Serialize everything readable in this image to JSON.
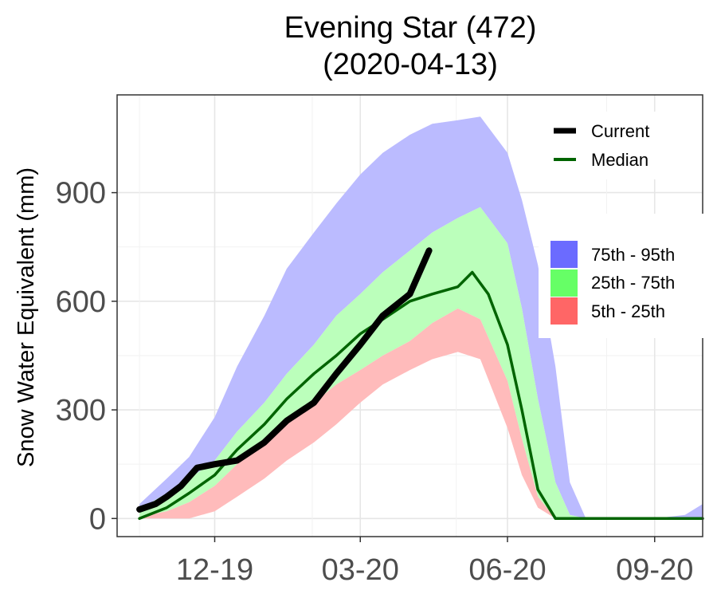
{
  "chart_data": {
    "type": "area",
    "title": "Evening Star (472)",
    "subtitle": "(2020-04-13)",
    "xlabel": "",
    "ylabel": "Snow Water Equivalent (mm)",
    "x_ticks": [
      "12-19",
      "03-20",
      "06-20",
      "09-20"
    ],
    "y_ticks": [
      0,
      300,
      600,
      900
    ],
    "ylim": [
      -50,
      1170
    ],
    "xlim": [
      "2019-10-01",
      "2020-10-01"
    ],
    "grid": true,
    "legend_lines": [
      {
        "label": "Current",
        "color": "#000000"
      },
      {
        "label": "Median",
        "color": "#006400"
      }
    ],
    "legend_bands": [
      {
        "label": "75th - 95th",
        "color": "#6b6bff"
      },
      {
        "label": "25th - 75th",
        "color": "#66ff66"
      },
      {
        "label": "5th - 25th",
        "color": "#ff6666"
      }
    ],
    "band_colors": {
      "p75_95": "#bbbbff",
      "p25_75": "#bbffbb",
      "p5_25": "#ffbbbb"
    },
    "percentile_bands": {
      "dates": [
        "2019-10-15",
        "2019-11-01",
        "2019-11-15",
        "2019-12-01",
        "2019-12-15",
        "2020-01-01",
        "2020-01-15",
        "2020-02-01",
        "2020-02-15",
        "2020-03-01",
        "2020-03-15",
        "2020-04-01",
        "2020-04-15",
        "2020-05-01",
        "2020-05-15",
        "2020-06-01",
        "2020-06-10",
        "2020-06-20",
        "2020-07-01",
        "2020-07-10",
        "2020-07-20",
        "2020-08-01",
        "2020-09-01",
        "2020-09-20",
        "2020-10-01"
      ],
      "p5": [
        0,
        0,
        0,
        20,
        60,
        110,
        160,
        210,
        260,
        320,
        370,
        410,
        440,
        460,
        440,
        250,
        120,
        30,
        0,
        0,
        0,
        0,
        0,
        0,
        0
      ],
      "p25": [
        5,
        20,
        45,
        90,
        150,
        210,
        270,
        320,
        370,
        410,
        450,
        490,
        540,
        580,
        550,
        380,
        220,
        60,
        0,
        0,
        0,
        0,
        0,
        0,
        0
      ],
      "p75": [
        25,
        70,
        110,
        160,
        240,
        320,
        400,
        480,
        560,
        620,
        680,
        740,
        790,
        830,
        860,
        760,
        580,
        330,
        100,
        10,
        0,
        0,
        0,
        0,
        0
      ],
      "p95": [
        40,
        110,
        170,
        280,
        420,
        560,
        690,
        790,
        870,
        950,
        1010,
        1060,
        1090,
        1100,
        1110,
        1010,
        880,
        700,
        420,
        100,
        0,
        0,
        0,
        10,
        40
      ]
    },
    "series": [
      {
        "name": "Median",
        "color": "#006400",
        "dates": [
          "2019-10-15",
          "2019-11-01",
          "2019-11-15",
          "2019-12-01",
          "2019-12-15",
          "2020-01-01",
          "2020-01-15",
          "2020-02-01",
          "2020-02-15",
          "2020-03-01",
          "2020-03-15",
          "2020-04-01",
          "2020-04-15",
          "2020-05-01",
          "2020-05-10",
          "2020-05-20",
          "2020-06-01",
          "2020-06-10",
          "2020-06-20",
          "2020-07-01",
          "2020-07-10",
          "2020-08-01",
          "2020-09-01",
          "2020-10-01"
        ],
        "values": [
          0,
          30,
          70,
          120,
          190,
          260,
          330,
          400,
          450,
          510,
          550,
          600,
          620,
          640,
          680,
          620,
          480,
          300,
          80,
          0,
          0,
          0,
          0,
          0
        ]
      },
      {
        "name": "Current",
        "color": "#000000",
        "dates": [
          "2019-10-15",
          "2019-10-25",
          "2019-11-01",
          "2019-11-10",
          "2019-11-20",
          "2019-12-01",
          "2019-12-15",
          "2020-01-01",
          "2020-01-15",
          "2020-02-01",
          "2020-02-15",
          "2020-03-01",
          "2020-03-15",
          "2020-04-01",
          "2020-04-13"
        ],
        "values": [
          25,
          40,
          60,
          90,
          140,
          150,
          160,
          210,
          270,
          320,
          400,
          480,
          560,
          620,
          740
        ]
      }
    ]
  }
}
